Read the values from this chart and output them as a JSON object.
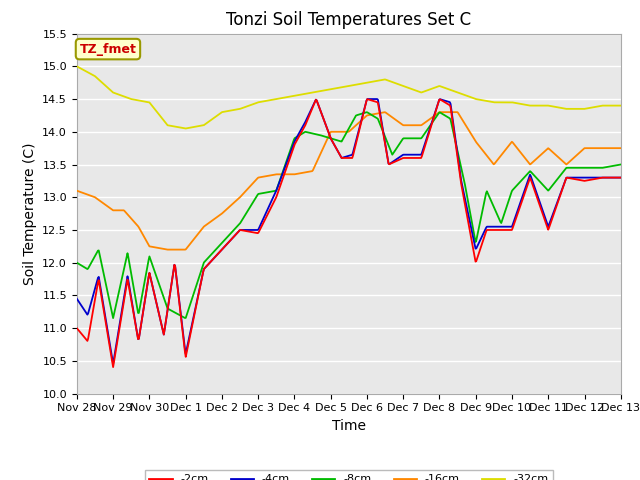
{
  "title": "Tonzi Soil Temperatures Set C",
  "xlabel": "Time",
  "ylabel": "Soil Temperature (C)",
  "ylim": [
    10.0,
    15.5
  ],
  "xtick_labels": [
    "Nov 28",
    "Nov 29",
    "Nov 30",
    "Dec 1",
    "Dec 2",
    "Dec 3",
    "Dec 4",
    "Dec 5",
    "Dec 6",
    "Dec 7",
    "Dec 8",
    "Dec 9",
    "Dec 10",
    "Dec 11",
    "Dec 12",
    "Dec 13"
  ],
  "line_colors": [
    "#ff0000",
    "#0000cc",
    "#00bb00",
    "#ff8800",
    "#dddd00"
  ],
  "line_labels": [
    "-2cm",
    "-4cm",
    "-8cm",
    "-16cm",
    "-32cm"
  ],
  "legend_label": "TZ_fmet",
  "legend_text_color": "#cc0000",
  "legend_bg": "#ffffcc",
  "legend_border": "#999900",
  "background_color": "#e8e8e8",
  "grid_color": "#ffffff",
  "title_fontsize": 12,
  "axis_fontsize": 10,
  "tick_fontsize": 8
}
